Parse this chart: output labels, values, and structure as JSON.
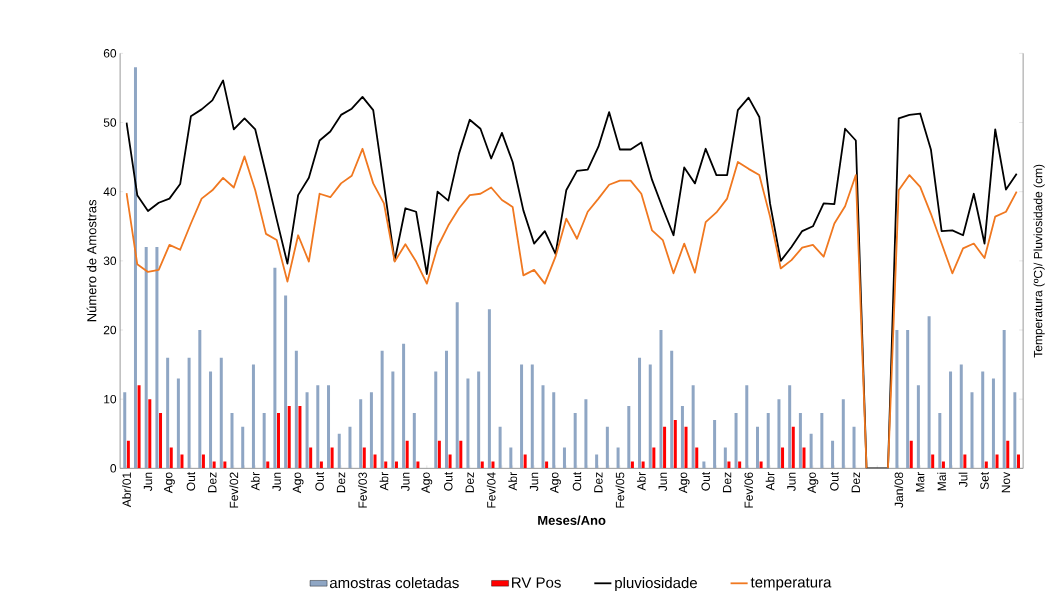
{
  "chart_data": {
    "type": "bar",
    "xlabel": "Meses/Ano",
    "ylabel": "Número de Amostras",
    "y2label": "Temperatura (ºC)/ Pluviosidade (cm)",
    "categories": [
      "Abr/01",
      null,
      "Jun",
      null,
      "Ago",
      null,
      "Out",
      null,
      "Dez",
      null,
      "Fev/02",
      null,
      "Abr",
      null,
      "Jun",
      null,
      "Ago",
      null,
      "Out",
      null,
      "Dez",
      null,
      "Fev/03",
      null,
      "Abr",
      null,
      "Jun",
      null,
      "Ago",
      null,
      "Out",
      null,
      "Dez",
      null,
      "Fev/04",
      null,
      "Abr",
      null,
      "Jun",
      null,
      "Ago",
      null,
      "Out",
      null,
      "Dez",
      null,
      "Fev/05",
      null,
      "Abr",
      null,
      "Jun",
      null,
      "Ago",
      null,
      "Out",
      null,
      "Dez",
      null,
      "Fev/06",
      null,
      "Abr",
      null,
      "Jun",
      null,
      "Ago",
      null,
      "Out",
      null,
      "Dez",
      null,
      null,
      null,
      "Jan/08",
      null,
      "Mar",
      null,
      "Mai",
      null,
      "Jul",
      null,
      "Set",
      null,
      "Nov",
      null
    ],
    "series": [
      {
        "name": "amostras coletadas",
        "color": "#8fa6c4",
        "values": [
          11,
          58,
          32,
          32,
          16,
          13,
          16,
          20,
          14,
          16,
          8,
          6,
          15,
          8,
          29,
          25,
          17,
          11,
          12,
          12,
          5,
          6,
          10,
          11,
          17,
          14,
          18,
          8,
          0,
          14,
          17,
          24,
          13,
          14,
          23,
          6,
          3,
          15,
          15,
          12,
          11,
          3,
          8,
          10,
          2,
          6,
          3,
          9,
          16,
          15,
          20,
          17,
          9,
          12,
          1,
          7,
          3,
          8,
          12,
          6,
          8,
          10,
          12,
          8,
          5,
          8,
          4,
          10,
          6,
          0,
          0,
          0,
          20,
          20,
          12,
          22,
          8,
          14,
          15,
          11,
          14,
          13,
          20,
          11
        ]
      },
      {
        "name": "RV Pos",
        "color": "#ff0000",
        "values": [
          4,
          12,
          10,
          8,
          3,
          2,
          0,
          2,
          1,
          1,
          0,
          0,
          0,
          1,
          8,
          9,
          9,
          3,
          1,
          3,
          0,
          0,
          3,
          2,
          1,
          1,
          4,
          1,
          0,
          4,
          2,
          4,
          0,
          1,
          1,
          0,
          0,
          2,
          0,
          1,
          0,
          0,
          0,
          0,
          0,
          0,
          0,
          1,
          1,
          3,
          6,
          7,
          6,
          3,
          0,
          0,
          1,
          1,
          0,
          1,
          0,
          3,
          6,
          3,
          0,
          0,
          0,
          0,
          0,
          0,
          0,
          0,
          0,
          4,
          0,
          2,
          1,
          0,
          2,
          0,
          1,
          2,
          4,
          2
        ]
      },
      {
        "name": "pluviosidade",
        "type": "line",
        "color": "#000000",
        "values": [
          50,
          39.5,
          37.2,
          38.4,
          39,
          41.1,
          50.9,
          51.9,
          53.2,
          56.1,
          49,
          50.6,
          49,
          42.6,
          36,
          29.6,
          39.5,
          42,
          47.4,
          48.7,
          51.1,
          52,
          53.7,
          51.8,
          41,
          30,
          37.6,
          37.1,
          28.1,
          40,
          38.7,
          45.5,
          50.4,
          49.1,
          44.8,
          48.5,
          44.3,
          37.3,
          32.5,
          34.3,
          31,
          40.2,
          43,
          43.2,
          46.5,
          51.5,
          46.1,
          46.1,
          47.1,
          41.7,
          37.6,
          33.7,
          43.5,
          41.2,
          46.2,
          42.4,
          42.4,
          51.8,
          53.6,
          50.8,
          38.3,
          30,
          32,
          34.3,
          35,
          38.3,
          38.2,
          49.1,
          47.4,
          0,
          0,
          0,
          50.6,
          51.1,
          51.3,
          46.1,
          34.3,
          34.4,
          33.7,
          39.7,
          32.5,
          49,
          40.3,
          42.6
        ]
      },
      {
        "name": "temperatura",
        "type": "line",
        "color": "#f07820",
        "values": [
          39.8,
          29.5,
          28.4,
          28.7,
          32.3,
          31.6,
          35.4,
          39,
          40.2,
          42,
          40.6,
          45.1,
          40.2,
          33.9,
          33,
          27,
          33.7,
          29.9,
          39.7,
          39.2,
          41.2,
          42.3,
          46.2,
          41.2,
          38.3,
          29.9,
          32.4,
          29.9,
          26.7,
          32,
          35.1,
          37.6,
          39.5,
          39.7,
          40.6,
          38.8,
          37.8,
          27.9,
          28.7,
          26.7,
          30.6,
          36.1,
          33.2,
          37.1,
          39,
          41,
          41.6,
          41.6,
          39.7,
          34.4,
          33,
          28.2,
          32.5,
          28.3,
          35.6,
          37,
          39,
          44.3,
          43.3,
          42.4,
          36.4,
          28.9,
          30.1,
          31.9,
          32.3,
          30.6,
          35.4,
          37.9,
          42.4,
          0,
          null,
          0,
          40.2,
          42.4,
          40.7,
          36.8,
          32.5,
          28.2,
          31.8,
          32.5,
          30.4,
          36.4,
          37.1,
          40
        ]
      }
    ],
    "ylim": [
      0,
      60
    ],
    "yticks": [
      0,
      10,
      20,
      30,
      40,
      50,
      60
    ],
    "legend": "bottom"
  }
}
